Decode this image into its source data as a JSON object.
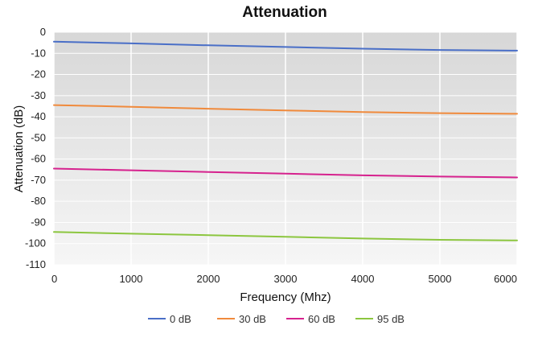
{
  "chart_data": {
    "type": "line",
    "title": "Attenuation",
    "xlabel": "Frequency (Mhz)",
    "ylabel": "Attenuation (dB)",
    "xlim": [
      0,
      6000
    ],
    "ylim": [
      -110,
      0
    ],
    "x_ticks": [
      0,
      1000,
      2000,
      3000,
      4000,
      5000,
      6000
    ],
    "y_ticks": [
      0,
      -10,
      -20,
      -30,
      -40,
      -50,
      -60,
      -70,
      -80,
      -90,
      -100,
      -110
    ],
    "grid": true,
    "legend_position": "bottom",
    "x": [
      0,
      1000,
      2000,
      3000,
      4000,
      5000,
      6000
    ],
    "series": [
      {
        "name": "0 dB",
        "color": "#4a6fc7",
        "values": [
          -4.5,
          -5.3,
          -6.2,
          -7.0,
          -7.8,
          -8.4,
          -8.7
        ]
      },
      {
        "name": "30 dB",
        "color": "#f08a3c",
        "values": [
          -34.5,
          -35.3,
          -36.2,
          -37.0,
          -37.8,
          -38.3,
          -38.6
        ]
      },
      {
        "name": "60 dB",
        "color": "#d6228e",
        "values": [
          -64.5,
          -65.3,
          -66.1,
          -66.9,
          -67.7,
          -68.3,
          -68.7
        ]
      },
      {
        "name": "95 dB",
        "color": "#8cc63f",
        "values": [
          -94.5,
          -95.3,
          -96.0,
          -96.8,
          -97.6,
          -98.2,
          -98.5
        ]
      }
    ]
  }
}
